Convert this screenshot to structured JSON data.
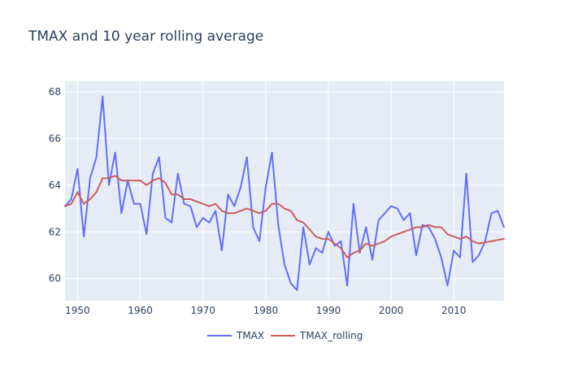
{
  "chart_data": {
    "type": "line",
    "title": "TMAX and 10 year rolling average",
    "xlabel": "",
    "ylabel": "",
    "xlim": [
      1948,
      2018
    ],
    "ylim": [
      59.05,
      68.45
    ],
    "x_ticks": [
      1950,
      1960,
      1970,
      1980,
      1990,
      2000,
      2010
    ],
    "y_ticks": [
      60,
      62,
      64,
      66,
      68
    ],
    "grid": true,
    "legend_position": "bottom-center",
    "x": [
      1948,
      1949,
      1950,
      1951,
      1952,
      1953,
      1954,
      1955,
      1956,
      1957,
      1958,
      1959,
      1960,
      1961,
      1962,
      1963,
      1964,
      1965,
      1966,
      1967,
      1968,
      1969,
      1970,
      1971,
      1972,
      1973,
      1974,
      1975,
      1976,
      1977,
      1978,
      1979,
      1980,
      1981,
      1982,
      1983,
      1984,
      1985,
      1986,
      1987,
      1988,
      1989,
      1990,
      1991,
      1992,
      1993,
      1994,
      1995,
      1996,
      1997,
      1998,
      1999,
      2000,
      2001,
      2002,
      2003,
      2004,
      2005,
      2006,
      2007,
      2008,
      2009,
      2010,
      2011,
      2012,
      2013,
      2014,
      2015,
      2016,
      2017,
      2018
    ],
    "series": [
      {
        "name": "TMAX",
        "color": "#636efa",
        "values": [
          63.1,
          63.4,
          64.7,
          61.8,
          64.3,
          65.2,
          67.8,
          64.0,
          65.4,
          62.8,
          64.2,
          63.2,
          63.2,
          61.9,
          64.5,
          65.2,
          62.6,
          62.4,
          64.5,
          63.2,
          63.1,
          62.2,
          62.6,
          62.4,
          62.9,
          61.2,
          63.6,
          63.1,
          63.9,
          65.2,
          62.2,
          61.6,
          63.9,
          65.4,
          62.3,
          60.6,
          59.8,
          59.5,
          62.2,
          60.6,
          61.3,
          61.1,
          62.0,
          61.4,
          61.6,
          59.7,
          63.2,
          61.1,
          62.2,
          60.8,
          62.5,
          62.8,
          63.1,
          63.0,
          62.5,
          62.8,
          61.0,
          62.3,
          62.2,
          61.7,
          60.9,
          59.7,
          61.2,
          60.9,
          64.5,
          60.7,
          61.0,
          61.6,
          62.8,
          62.9,
          62.2
        ]
      },
      {
        "name": "TMAX_rolling",
        "color": "#cd5c5c",
        "values": [
          63.1,
          63.2,
          63.7,
          63.2,
          63.4,
          63.7,
          64.3,
          64.3,
          64.4,
          64.2,
          64.2,
          64.2,
          64.2,
          64.0,
          64.2,
          64.3,
          64.1,
          63.6,
          63.6,
          63.4,
          63.4,
          63.3,
          63.2,
          63.1,
          63.2,
          62.9,
          62.8,
          62.8,
          62.9,
          63.0,
          62.9,
          62.8,
          62.9,
          63.2,
          63.2,
          63.0,
          62.9,
          62.5,
          62.4,
          62.1,
          61.8,
          61.7,
          61.7,
          61.5,
          61.3,
          60.9,
          61.1,
          61.2,
          61.5,
          61.4,
          61.5,
          61.6,
          61.8,
          61.9,
          62.0,
          62.1,
          62.2,
          62.2,
          62.3,
          62.2,
          62.2,
          61.9,
          61.8,
          61.7,
          61.8,
          61.6,
          61.5,
          61.55,
          61.6,
          61.65,
          61.7
        ]
      }
    ]
  }
}
